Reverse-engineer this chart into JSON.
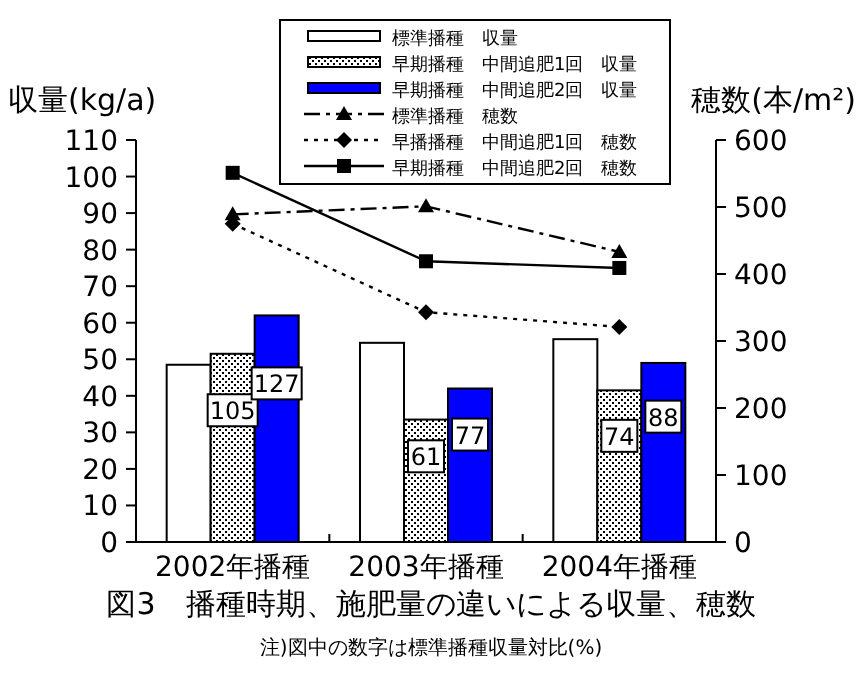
{
  "chart_data": {
    "type": "bar",
    "title": "図3　播種時期、施肥量の違いによる収量、穂数",
    "ylabel": "収量(kg/a)",
    "y2label": "穂数(本/m²)",
    "annotations": [
      "注)図中の数字は標準播種収量対比(%)",
      "105",
      "127",
      "61",
      "77",
      "74",
      "88"
    ],
    "categories": [
      "2002年播種",
      "2003年播種",
      "2004年播種"
    ],
    "series": [
      {
        "name": "標準播種　収量",
        "color": "#ffffff",
        "values": [
          48.5,
          54.5,
          55.5
        ]
      },
      {
        "name": "早期播種　中間追肥1回　収量",
        "color": "#000000",
        "values": [
          51.5,
          33.5,
          41.5
        ]
      },
      {
        "name": "早期播種　中間追肥2回　収量",
        "color": "#0000ff",
        "values": [
          62,
          42,
          49
        ]
      },
      {
        "name": "標準播種　穂数",
        "type": "line",
        "axis": "y2",
        "color": "#000000",
        "marker": "triangle",
        "line_style": "dashed",
        "values": [
          489,
          501,
          433
        ]
      },
      {
        "name": "早播播種　中間追肥1回　穂数",
        "type": "line",
        "axis": "y2",
        "color": "#000000",
        "marker": "diamond",
        "line_style": "dotted",
        "values": [
          475,
          343,
          321
        ]
      },
      {
        "name": "早期播種　中間追肥2回　穂数",
        "type": "line",
        "axis": "y2",
        "color": "#000000",
        "marker": "square",
        "line_style": "solid",
        "values": [
          551,
          419,
          409
        ]
      }
    ],
    "ylim": [
      0,
      110
    ],
    "yticks": [
      0,
      10,
      20,
      30,
      40,
      50,
      60,
      70,
      80,
      90,
      100,
      110
    ],
    "y2lim": [
      0,
      600
    ],
    "y2ticks": [
      0,
      100,
      200,
      300,
      400,
      500,
      600
    ],
    "legend": "top",
    "grid": false
  }
}
